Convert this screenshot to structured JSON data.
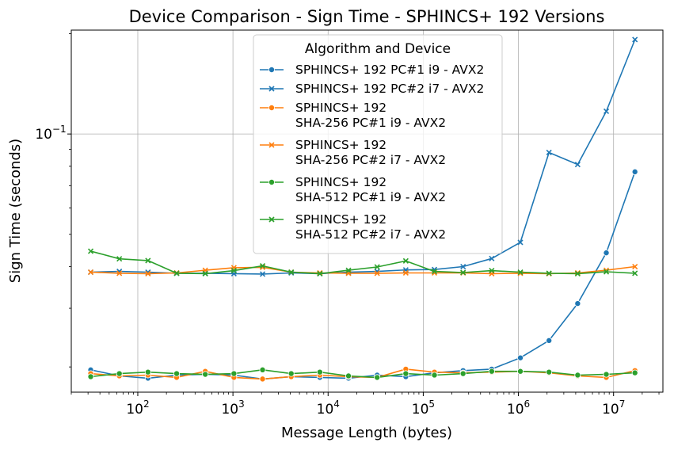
{
  "chart_data": {
    "type": "line",
    "title": "Device Comparison - Sign Time - SPHINCS+ 192 Versions",
    "xlabel": "Message Length (bytes)",
    "ylabel": "Sign Time (seconds)",
    "x_scale": "log",
    "y_scale": "log",
    "xlim": [
      20,
      33000000
    ],
    "ylim": [
      0.0168,
      0.205
    ],
    "grid": true,
    "x_ticks": [
      {
        "value": 100,
        "base": "10",
        "exp": "2"
      },
      {
        "value": 1000,
        "base": "10",
        "exp": "3"
      },
      {
        "value": 10000,
        "base": "10",
        "exp": "4"
      },
      {
        "value": 100000,
        "base": "10",
        "exp": "5"
      },
      {
        "value": 1000000,
        "base": "10",
        "exp": "6"
      },
      {
        "value": 10000000,
        "base": "10",
        "exp": "7"
      }
    ],
    "y_ticks": [
      {
        "value": 0.1,
        "base": "10",
        "exp": "−1"
      }
    ],
    "legend": {
      "title": "Algorithm and Device",
      "position": "top-center"
    },
    "x": [
      32,
      64,
      128,
      256,
      512,
      1024,
      2048,
      4096,
      8192,
      16384,
      32768,
      65536,
      131072,
      262144,
      524288,
      1048576,
      2097152,
      4194304,
      8388608,
      16777216
    ],
    "series": [
      {
        "name": "SPHINCS+ 192 PC#1 i9 - AVX2",
        "label_lines": [
          "SPHINCS+ 192 PC#1 i9 - AVX2"
        ],
        "color": "#1f77b4",
        "marker": "circle",
        "values": [
          0.0196,
          0.0188,
          0.0185,
          0.0189,
          0.019,
          0.0189,
          0.0184,
          0.0187,
          0.0186,
          0.0185,
          0.0189,
          0.0187,
          0.0192,
          0.0195,
          0.0197,
          0.0213,
          0.024,
          0.031,
          0.044,
          0.077
        ]
      },
      {
        "name": "SPHINCS+ 192 PC#2 i7 - AVX2",
        "label_lines": [
          "SPHINCS+ 192 PC#2 i7 - AVX2"
        ],
        "color": "#1f77b4",
        "marker": "x",
        "values": [
          0.0385,
          0.0387,
          0.0385,
          0.0382,
          0.0382,
          0.0381,
          0.038,
          0.0383,
          0.0381,
          0.0385,
          0.0387,
          0.0391,
          0.0392,
          0.04,
          0.0423,
          0.0473,
          0.088,
          0.081,
          0.117,
          0.192
        ]
      },
      {
        "name": "SPHINCS+ 192 SHA-256 PC#1 i9 - AVX2",
        "label_lines": [
          "SPHINCS+ 192",
          "SHA-256 PC#1 i9 - AVX2"
        ],
        "color": "#ff7f0e",
        "marker": "circle",
        "values": [
          0.0191,
          0.0188,
          0.0189,
          0.0186,
          0.0194,
          0.0186,
          0.0184,
          0.0187,
          0.0189,
          0.0187,
          0.0186,
          0.0197,
          0.0193,
          0.0192,
          0.0193,
          0.0194,
          0.0192,
          0.0188,
          0.0186,
          0.0195
        ]
      },
      {
        "name": "SPHINCS+ 192 SHA-256 PC#2 i7 - AVX2",
        "label_lines": [
          "SPHINCS+ 192",
          "SHA-256 PC#2 i7 - AVX2"
        ],
        "color": "#ff7f0e",
        "marker": "x",
        "values": [
          0.0385,
          0.0382,
          0.0381,
          0.0383,
          0.039,
          0.0397,
          0.0398,
          0.0385,
          0.0383,
          0.0382,
          0.0382,
          0.0383,
          0.0383,
          0.0383,
          0.0381,
          0.0382,
          0.0381,
          0.0383,
          0.039,
          0.04
        ]
      },
      {
        "name": "SPHINCS+ 192 SHA-512 PC#1 i9 - AVX2",
        "label_lines": [
          "SPHINCS+ 192",
          "SHA-512 PC#1 i9 - AVX2"
        ],
        "color": "#2ca02c",
        "marker": "circle",
        "values": [
          0.0187,
          0.0191,
          0.0193,
          0.0191,
          0.019,
          0.0191,
          0.0196,
          0.0191,
          0.0193,
          0.0188,
          0.0186,
          0.0191,
          0.0189,
          0.0191,
          0.0194,
          0.0194,
          0.0193,
          0.0189,
          0.019,
          0.0192
        ]
      },
      {
        "name": "SPHINCS+ 192 SHA-512 PC#2 i7 - AVX2",
        "label_lines": [
          "SPHINCS+ 192",
          "SHA-512 PC#2 i7 - AVX2"
        ],
        "color": "#2ca02c",
        "marker": "x",
        "values": [
          0.0445,
          0.0422,
          0.0417,
          0.0382,
          0.0381,
          0.0389,
          0.0402,
          0.0385,
          0.0381,
          0.039,
          0.0399,
          0.0416,
          0.0387,
          0.0384,
          0.0389,
          0.0385,
          0.0382,
          0.0381,
          0.0386,
          0.0382
        ]
      }
    ]
  }
}
